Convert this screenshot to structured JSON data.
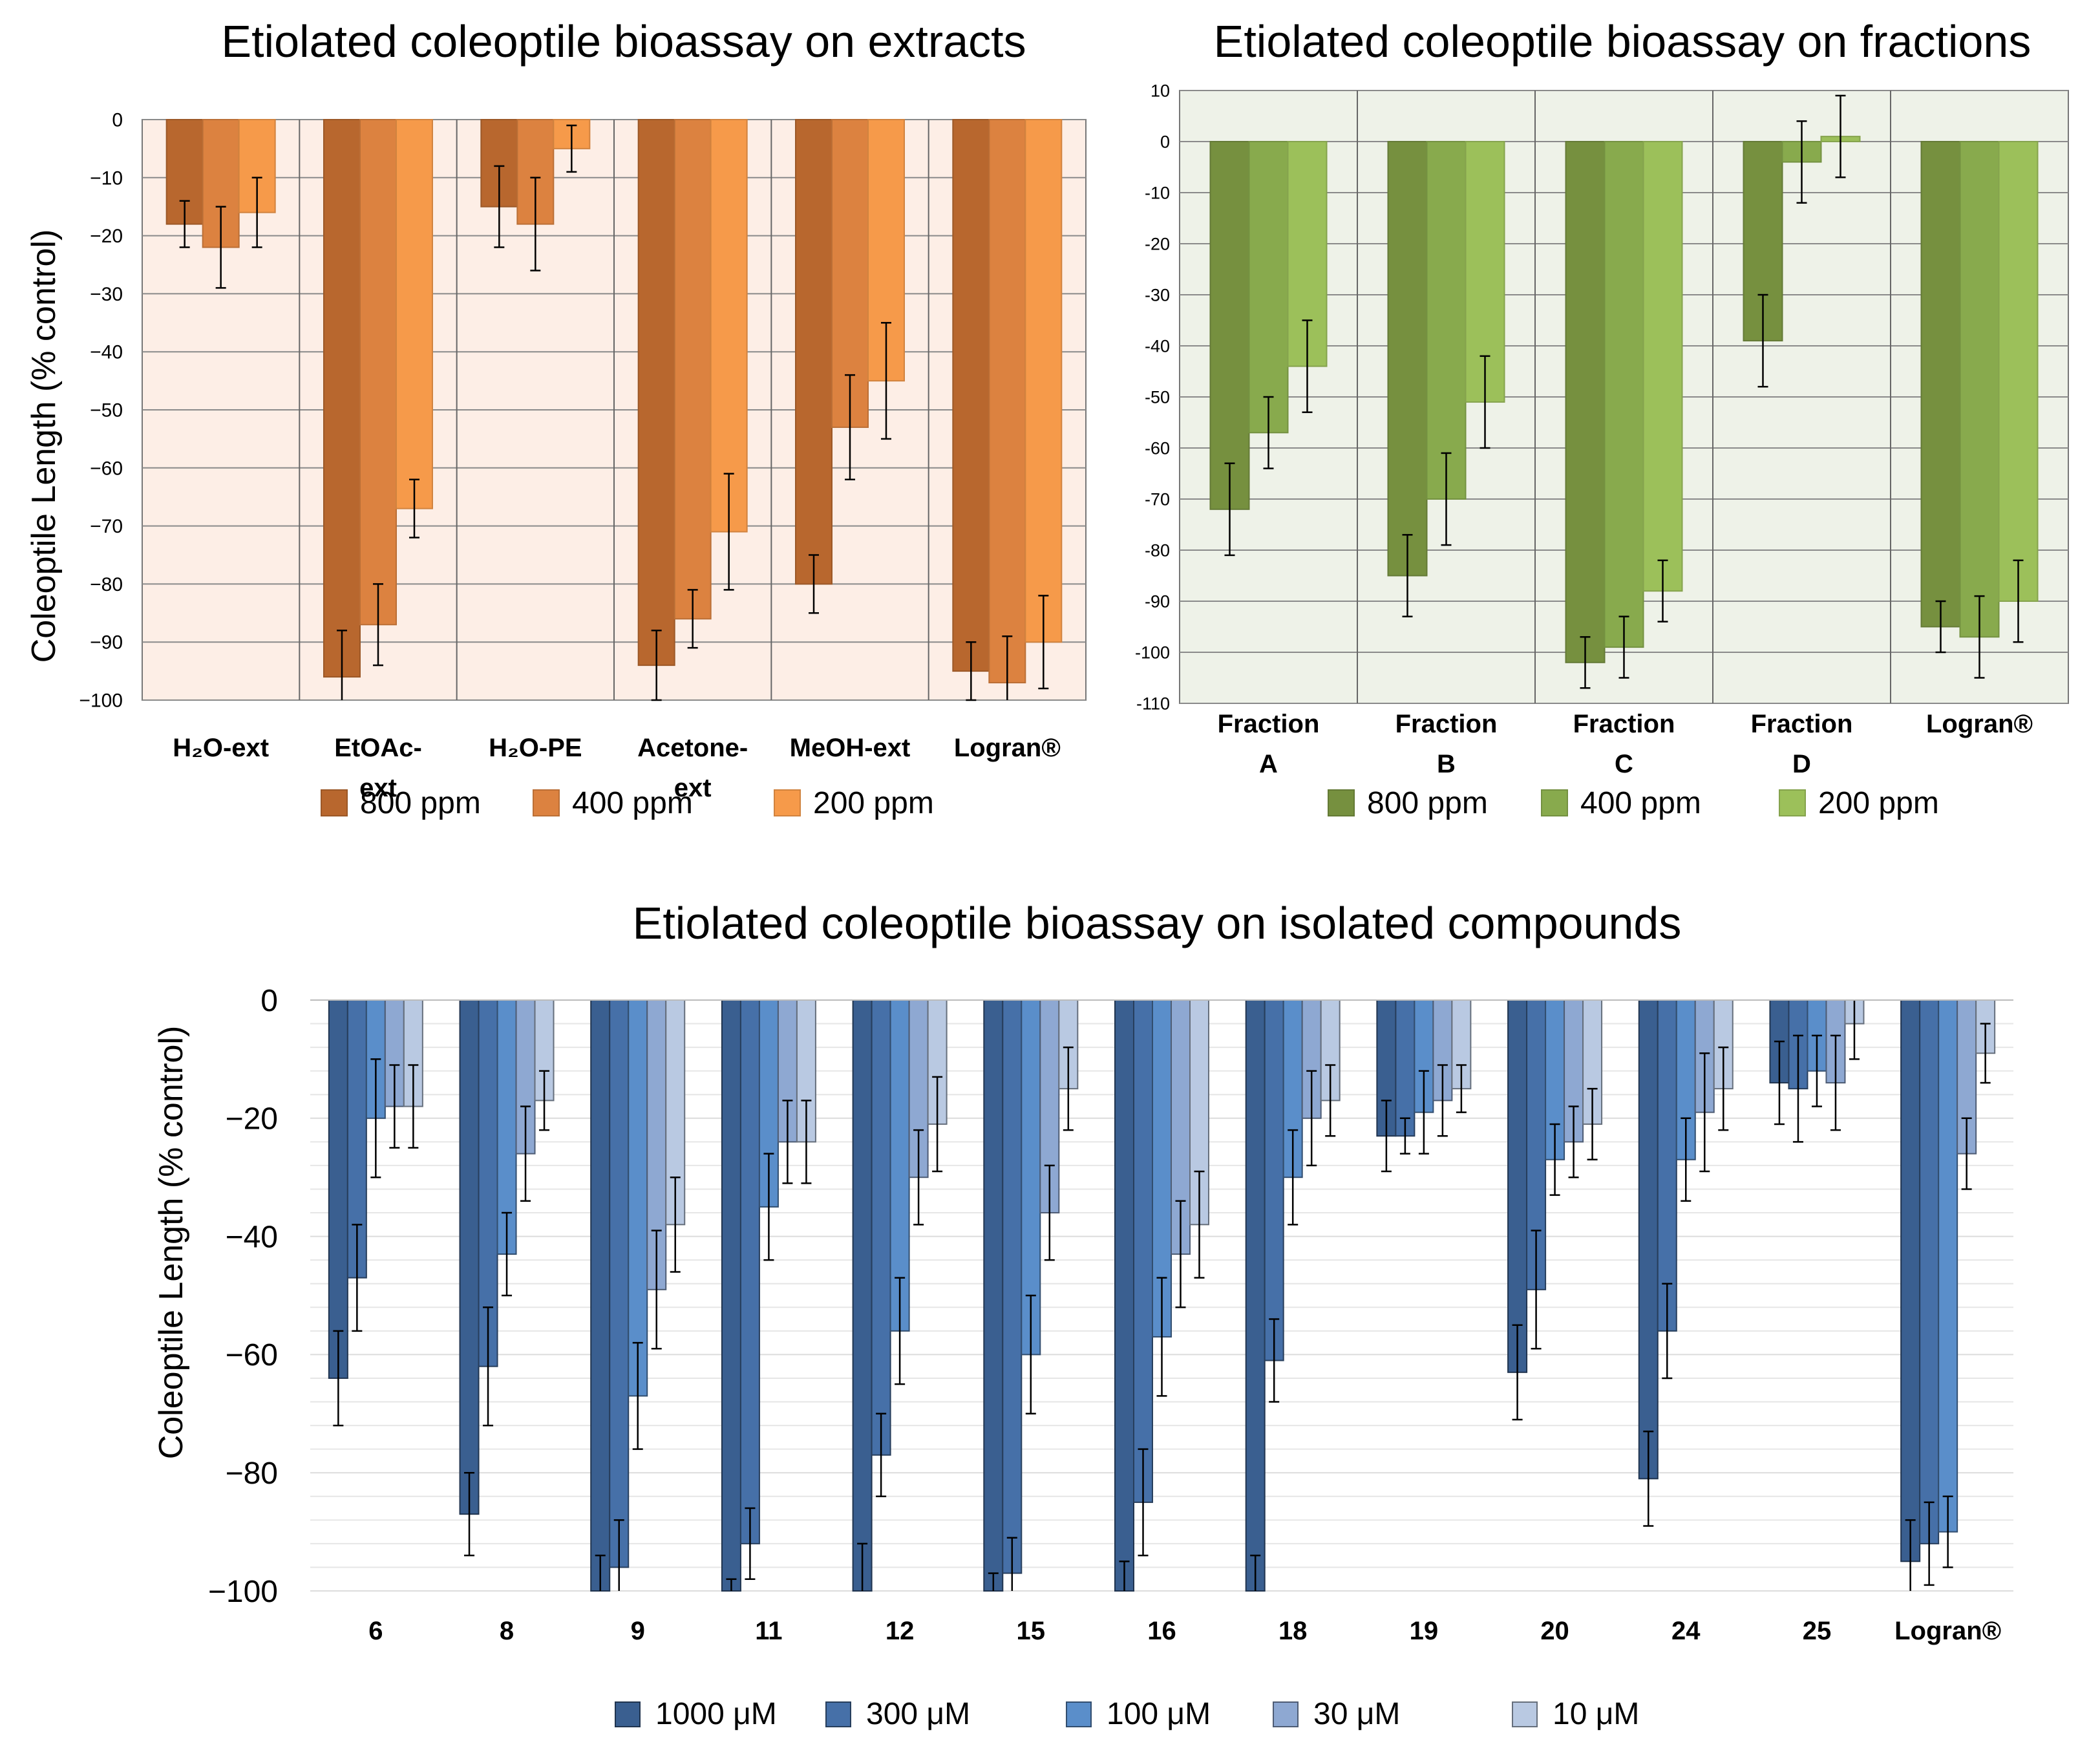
{
  "chart_data": [
    {
      "type": "bar",
      "title": "Etiolated coleoptile bioassay on extracts",
      "ylabel": "Coleoptile Length (% control)",
      "xlabel": "",
      "ylim": [
        -100,
        0
      ],
      "yticks": [
        "0",
        "−10",
        "−20",
        "−30",
        "−40",
        "−50",
        "−60",
        "−70",
        "−80",
        "−90",
        "−100"
      ],
      "categories": [
        [
          "H₂O-ext"
        ],
        [
          "EtOAc-",
          "ext"
        ],
        [
          "H₂O-PE"
        ],
        [
          "Acetone-",
          "ext"
        ],
        [
          "MeOH-ext"
        ],
        [
          "Logran®"
        ]
      ],
      "series": [
        {
          "name": "800 ppm",
          "color": "#B8672E",
          "values": [
            -18,
            -96,
            -15,
            -94,
            -80,
            -95
          ],
          "errors": [
            4,
            8,
            7,
            6,
            5,
            5
          ]
        },
        {
          "name": "400 ppm",
          "color": "#DC8240",
          "values": [
            -22,
            -87,
            -18,
            -86,
            -53,
            -97
          ],
          "errors": [
            7,
            7,
            8,
            5,
            9,
            8
          ]
        },
        {
          "name": "200 ppm",
          "color": "#F69A4A",
          "values": [
            -16,
            -67,
            -5,
            -71,
            -45,
            -90
          ],
          "errors": [
            6,
            5,
            4,
            10,
            10,
            8
          ]
        }
      ],
      "grid": true,
      "legend": "bottom"
    },
    {
      "type": "bar",
      "title": "Etiolated coleoptile bioassay on fractions",
      "ylabel": "",
      "xlabel": "",
      "ylim": [
        -110,
        10
      ],
      "yticks": [
        "10",
        "0",
        "-10",
        "-20",
        "-30",
        "-40",
        "-50",
        "-60",
        "-70",
        "-80",
        "-90",
        "-100",
        "-110"
      ],
      "categories": [
        [
          "Fraction",
          "A"
        ],
        [
          "Fraction",
          "B"
        ],
        [
          "Fraction",
          "C"
        ],
        [
          "Fraction",
          "D"
        ],
        [
          "Logran®"
        ]
      ],
      "series": [
        {
          "name": "800 ppm",
          "color": "#76903F",
          "values": [
            -72,
            -85,
            -102,
            -39,
            -95
          ],
          "errors": [
            9,
            8,
            5,
            9,
            5
          ]
        },
        {
          "name": "400 ppm",
          "color": "#88AA4D",
          "values": [
            -57,
            -70,
            -99,
            -4,
            -97
          ],
          "errors": [
            7,
            9,
            6,
            8,
            8
          ]
        },
        {
          "name": "200 ppm",
          "color": "#9CC05A",
          "values": [
            -44,
            -51,
            -88,
            1,
            -90
          ],
          "errors": [
            9,
            9,
            6,
            8,
            8
          ]
        }
      ],
      "grid": true,
      "legend": "bottom"
    },
    {
      "type": "bar",
      "title": "Etiolated coleoptile bioassay on isolated compounds",
      "ylabel": "Coleoptile Length (% control)",
      "xlabel": "",
      "ylim": [
        -100,
        0
      ],
      "yticks": [
        "0",
        "−20",
        "−40",
        "−60",
        "−80",
        "−100"
      ],
      "categories": [
        [
          "6"
        ],
        [
          "8"
        ],
        [
          "9"
        ],
        [
          "11"
        ],
        [
          "12"
        ],
        [
          "15"
        ],
        [
          "16"
        ],
        [
          "18"
        ],
        [
          "19"
        ],
        [
          "20"
        ],
        [
          "24"
        ],
        [
          "25"
        ],
        [
          "Logran®"
        ]
      ],
      "series": [
        {
          "name": "1000 μM",
          "color": "#3A5F90",
          "values": [
            -64,
            -87,
            -100,
            -100,
            -100,
            -100,
            -100,
            -100,
            -23,
            -63,
            -81,
            -14,
            -95
          ],
          "errors": [
            8,
            7,
            6,
            2,
            8,
            3,
            5,
            6,
            6,
            8,
            8,
            7,
            7
          ]
        },
        {
          "name": "300 μM",
          "color": "#4670A8",
          "values": [
            -47,
            -62,
            -96,
            -92,
            -77,
            -97,
            -85,
            -61,
            -23,
            -49,
            -56,
            -15,
            -92
          ],
          "errors": [
            9,
            10,
            8,
            6,
            7,
            6,
            9,
            7,
            3,
            10,
            8,
            9,
            7
          ]
        },
        {
          "name": "100 μM",
          "color": "#5A8ECA",
          "values": [
            -20,
            -43,
            -67,
            -35,
            -56,
            -60,
            -57,
            -30,
            -19,
            -27,
            -27,
            -12,
            -90
          ],
          "errors": [
            10,
            7,
            9,
            9,
            9,
            10,
            10,
            8,
            7,
            6,
            7,
            6,
            6
          ]
        },
        {
          "name": "30 μM",
          "color": "#8EA8D2",
          "values": [
            -18,
            -26,
            -49,
            -24,
            -30,
            -36,
            -43,
            -20,
            -17,
            -24,
            -19,
            -14,
            -26
          ],
          "errors": [
            7,
            8,
            10,
            7,
            8,
            8,
            9,
            8,
            6,
            6,
            10,
            8,
            6
          ]
        },
        {
          "name": "10 μM",
          "color": "#B9C9E2",
          "values": [
            -18,
            -17,
            -38,
            -24,
            -21,
            -15,
            -38,
            -17,
            -15,
            -21,
            -15,
            -4,
            -9
          ],
          "errors": [
            7,
            5,
            8,
            7,
            8,
            7,
            9,
            6,
            4,
            6,
            7,
            6,
            5
          ]
        }
      ],
      "grid": true,
      "legend": "bottom"
    }
  ]
}
